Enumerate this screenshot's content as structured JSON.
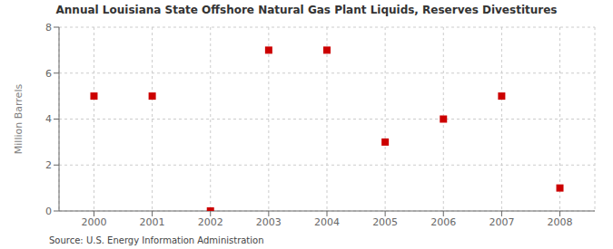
{
  "chart_data": {
    "type": "scatter",
    "title": "Annual Louisiana State Offshore Natural Gas Plant Liquids, Reserves Divestitures",
    "ylabel": "Million Barrels",
    "annotations": [
      "Source: U.S. Energy Information Administration"
    ],
    "x": [
      2000,
      2001,
      2002,
      2003,
      2004,
      2005,
      2006,
      2007,
      2008
    ],
    "values": [
      5.0,
      5.0,
      0.0,
      7.0,
      7.0,
      3.0,
      4.0,
      5.0,
      1.0
    ],
    "xlim": [
      1999.4,
      2008.6
    ],
    "ylim": [
      0,
      8
    ],
    "xticks": [
      2000,
      2001,
      2002,
      2003,
      2004,
      2005,
      2006,
      2007,
      2008
    ],
    "yticks": [
      0,
      2,
      4,
      6,
      8
    ],
    "color": "#cc0000",
    "marker": "square",
    "grid": true
  }
}
